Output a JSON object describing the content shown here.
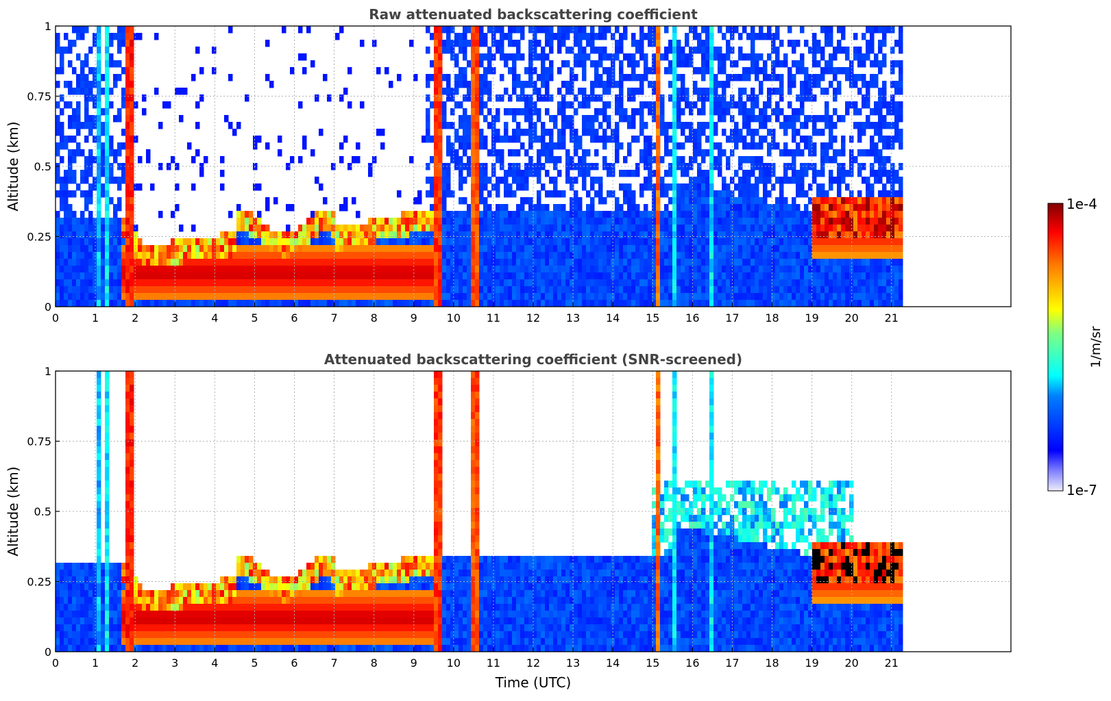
{
  "chart_data": [
    {
      "type": "heatmap",
      "title": "Raw attenuated backscattering coefficient",
      "xlabel": "",
      "ylabel": "Altitude (km)",
      "xlim": [
        0,
        24
      ],
      "ylim": [
        0,
        1
      ],
      "x_ticks": [
        "0",
        "1",
        "2",
        "3",
        "4",
        "5",
        "6",
        "7",
        "8",
        "9",
        "10",
        "11",
        "12",
        "13",
        "14",
        "15",
        "16",
        "17",
        "18",
        "19",
        "20",
        "21"
      ],
      "y_ticks": [
        "0",
        "0.25",
        "0.5",
        "0.75",
        "1"
      ],
      "data_end_hour": 21.3,
      "grid": true,
      "screened": false
    },
    {
      "type": "heatmap",
      "title": "Attenuated backscattering coefficient (SNR-screened)",
      "xlabel": "Time (UTC)",
      "ylabel": "Altitude (km)",
      "xlim": [
        0,
        24
      ],
      "ylim": [
        0,
        1
      ],
      "x_ticks": [
        "0",
        "1",
        "2",
        "3",
        "4",
        "5",
        "6",
        "7",
        "8",
        "9",
        "10",
        "11",
        "12",
        "13",
        "14",
        "15",
        "16",
        "17",
        "18",
        "19",
        "20",
        "21"
      ],
      "y_ticks": [
        "0",
        "0.25",
        "0.5",
        "0.75",
        "1"
      ],
      "data_end_hour": 21.3,
      "grid": true,
      "screened": true
    }
  ],
  "colorbar": {
    "label": "1/m/sr",
    "max_label": "1e-4",
    "min_label": "1e-7",
    "scale": "log",
    "colormap": "jet",
    "range": [
      1e-07,
      0.0001
    ]
  },
  "colors": {
    "background": "#ffffff",
    "title": "#444444",
    "grid": "#b0b0b0"
  }
}
